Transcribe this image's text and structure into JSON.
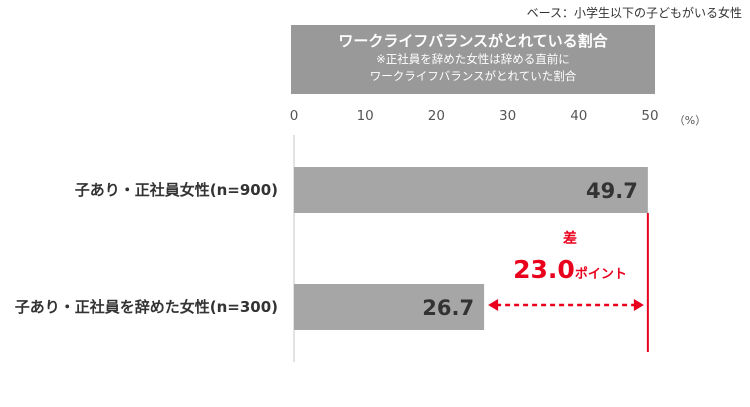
{
  "base_note": "ベース：小学生以下の子どもがいる女性",
  "header": {
    "title": "ワークライフバランスがとれている割合",
    "note_line1": "※正社員を辞めた女性は辞める直前に",
    "note_line2": "ワークライフバランスがとれていた割合"
  },
  "chart_data": {
    "type": "bar",
    "orientation": "horizontal",
    "categories": [
      "子あり・正社員女性(n=900)",
      "子あり・正社員を辞めた女性(n=300)"
    ],
    "values": [
      49.7,
      26.7
    ],
    "value_labels": [
      "49.7",
      "26.7"
    ],
    "xlim": [
      0,
      50
    ],
    "xticks": [
      "0",
      "10",
      "20",
      "30",
      "40",
      "50"
    ],
    "x_unit": "（%）",
    "bar_color": "#a6a6a6",
    "accent_color": "#e8001c",
    "difference": {
      "label_top": "差",
      "value": "23.0",
      "unit": "ポイント"
    }
  }
}
